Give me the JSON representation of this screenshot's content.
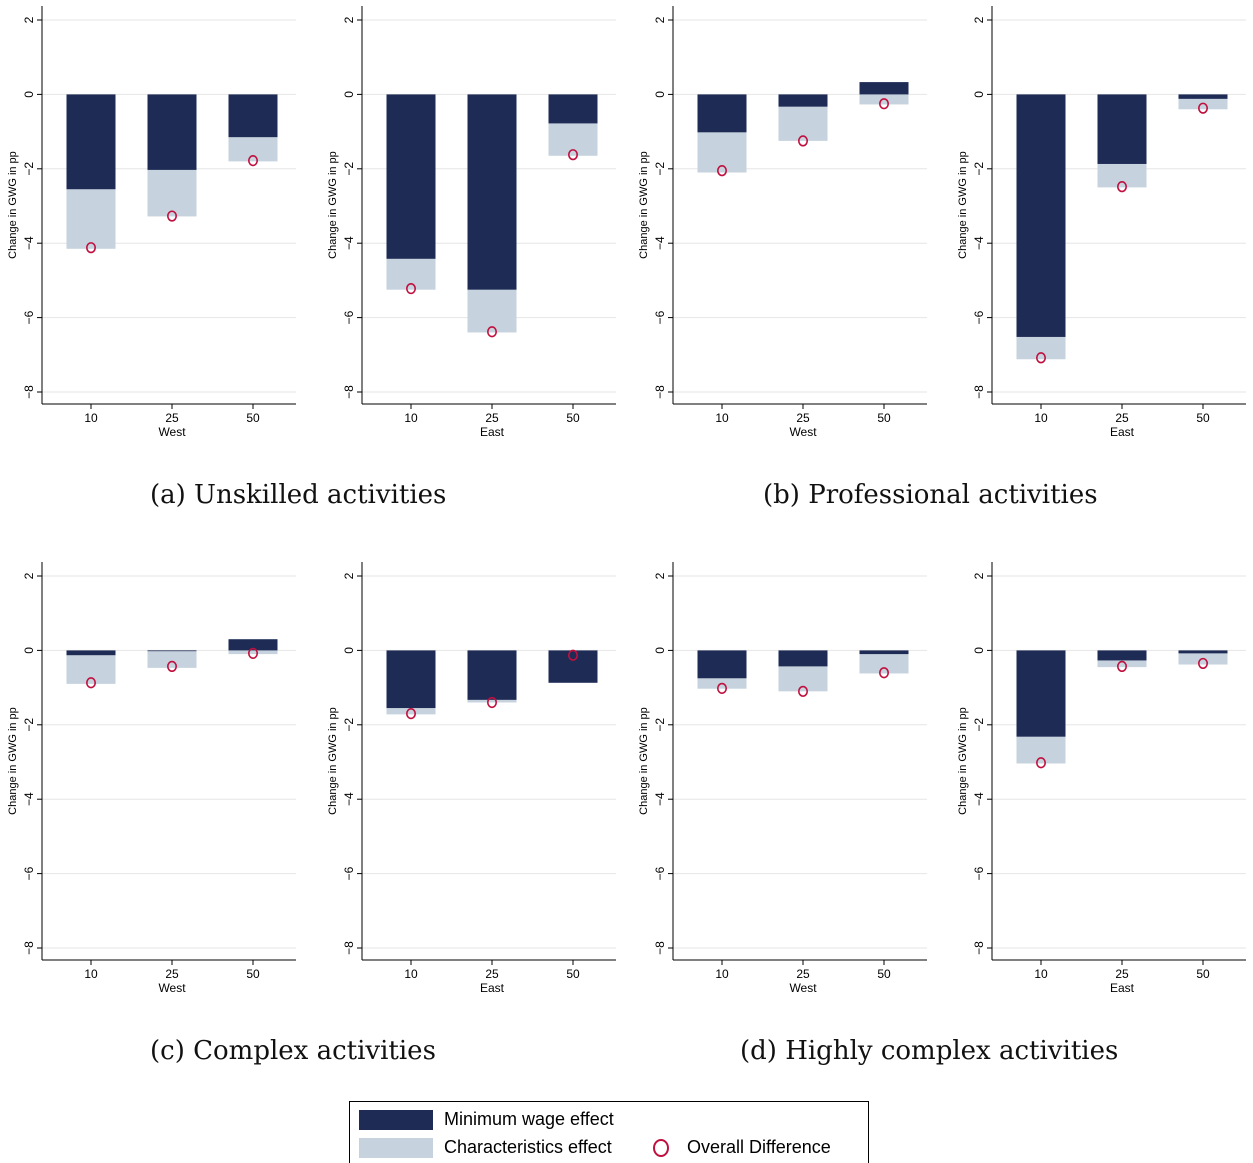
{
  "colors": {
    "minimum_wage": "#1e2b55",
    "characteristics": "#c6d3de",
    "overall": "#c0103f",
    "grid": "#e6e6e6",
    "axis": "#000000"
  },
  "captions": {
    "a": "(a) Unskilled activities",
    "b": "(b) Professional activities",
    "c": "(c) Complex activities",
    "d": "(d) Highly complex activities"
  },
  "legend": {
    "minimum_wage": "Minimum wage effect",
    "characteristics": "Characteristics effect",
    "overall": "Overall Difference"
  },
  "chart_data": [
    {
      "type": "bar",
      "panel": "a",
      "region": "West",
      "xlabel": "West",
      "ylabel": "Change in GWG in pp",
      "categories": [
        "10",
        "25",
        "50"
      ],
      "ylim": [
        -8,
        2
      ],
      "yticks": [
        2,
        0,
        -2,
        -4,
        -6,
        -8
      ],
      "series": [
        {
          "name": "Minimum wage effect",
          "values": [
            -2.55,
            -2.03,
            -1.15
          ]
        },
        {
          "name": "Characteristics effect",
          "values": [
            -1.6,
            -1.25,
            -0.65
          ]
        },
        {
          "name": "Overall Difference",
          "values": [
            -4.12,
            -3.27,
            -1.78
          ]
        }
      ]
    },
    {
      "type": "bar",
      "panel": "a",
      "region": "East",
      "xlabel": "East",
      "ylabel": "Change in GWG in pp",
      "categories": [
        "10",
        "25",
        "50"
      ],
      "ylim": [
        -8,
        2
      ],
      "yticks": [
        2,
        0,
        -2,
        -4,
        -6,
        -8
      ],
      "series": [
        {
          "name": "Minimum wage effect",
          "values": [
            -4.42,
            -5.25,
            -0.78
          ]
        },
        {
          "name": "Characteristics effect",
          "values": [
            -0.83,
            -1.15,
            -0.87
          ]
        },
        {
          "name": "Overall Difference",
          "values": [
            -5.22,
            -6.38,
            -1.62
          ]
        }
      ]
    },
    {
      "type": "bar",
      "panel": "b",
      "region": "West",
      "xlabel": "West",
      "ylabel": "Change in GWG in pp",
      "categories": [
        "10",
        "25",
        "50"
      ],
      "ylim": [
        -8,
        2
      ],
      "yticks": [
        2,
        0,
        -2,
        -4,
        -6,
        -8
      ],
      "series": [
        {
          "name": "Minimum wage effect",
          "values": [
            -1.02,
            -0.33,
            0.33
          ]
        },
        {
          "name": "Characteristics effect",
          "values": [
            -1.08,
            -0.92,
            -0.6
          ]
        },
        {
          "name": "Overall Difference",
          "values": [
            -2.05,
            -1.25,
            -0.25
          ]
        }
      ]
    },
    {
      "type": "bar",
      "panel": "b",
      "region": "East",
      "xlabel": "East",
      "ylabel": "Change in GWG in pp",
      "categories": [
        "10",
        "25",
        "50"
      ],
      "ylim": [
        -8,
        2
      ],
      "yticks": [
        2,
        0,
        -2,
        -4,
        -6,
        -8
      ],
      "series": [
        {
          "name": "Minimum wage effect",
          "values": [
            -6.52,
            -1.87,
            -0.12
          ]
        },
        {
          "name": "Characteristics effect",
          "values": [
            -0.6,
            -0.63,
            -0.28
          ]
        },
        {
          "name": "Overall Difference",
          "values": [
            -7.08,
            -2.48,
            -0.37
          ]
        }
      ]
    },
    {
      "type": "bar",
      "panel": "c",
      "region": "West",
      "xlabel": "West",
      "ylabel": "Change in GWG in pp",
      "categories": [
        "10",
        "25",
        "50"
      ],
      "ylim": [
        -8,
        2
      ],
      "yticks": [
        2,
        0,
        -2,
        -4,
        -6,
        -8
      ],
      "series": [
        {
          "name": "Minimum wage effect",
          "values": [
            -0.13,
            -0.02,
            0.3
          ]
        },
        {
          "name": "Characteristics effect",
          "values": [
            -0.77,
            -0.45,
            -0.4
          ]
        },
        {
          "name": "Overall Difference",
          "values": [
            -0.87,
            -0.43,
            -0.08
          ]
        }
      ]
    },
    {
      "type": "bar",
      "panel": "c",
      "region": "East",
      "xlabel": "East",
      "ylabel": "Change in GWG in pp",
      "categories": [
        "10",
        "25",
        "50"
      ],
      "ylim": [
        -8,
        2
      ],
      "yticks": [
        2,
        0,
        -2,
        -4,
        -6,
        -8
      ],
      "series": [
        {
          "name": "Minimum wage effect",
          "values": [
            -1.55,
            -1.33,
            -0.87
          ]
        },
        {
          "name": "Characteristics effect",
          "values": [
            -0.17,
            -0.07,
            0.72
          ]
        },
        {
          "name": "Overall Difference",
          "values": [
            -1.7,
            -1.4,
            -0.13
          ]
        }
      ]
    },
    {
      "type": "bar",
      "panel": "d",
      "region": "West",
      "xlabel": "West",
      "ylabel": "Change in GWG in pp",
      "categories": [
        "10",
        "25",
        "50"
      ],
      "ylim": [
        -8,
        2
      ],
      "yticks": [
        2,
        0,
        -2,
        -4,
        -6,
        -8
      ],
      "series": [
        {
          "name": "Minimum wage effect",
          "values": [
            -0.75,
            -0.43,
            -0.1
          ]
        },
        {
          "name": "Characteristics effect",
          "values": [
            -0.28,
            -0.67,
            -0.52
          ]
        },
        {
          "name": "Overall Difference",
          "values": [
            -1.02,
            -1.1,
            -0.6
          ]
        }
      ]
    },
    {
      "type": "bar",
      "panel": "d",
      "region": "East",
      "xlabel": "East",
      "ylabel": "Change in GWG in pp",
      "categories": [
        "10",
        "25",
        "50"
      ],
      "ylim": [
        -8,
        2
      ],
      "yticks": [
        2,
        0,
        -2,
        -4,
        -6,
        -8
      ],
      "series": [
        {
          "name": "Minimum wage effect",
          "values": [
            -2.32,
            -0.27,
            -0.08
          ]
        },
        {
          "name": "Characteristics effect",
          "values": [
            -0.72,
            -0.18,
            -0.3
          ]
        },
        {
          "name": "Overall Difference",
          "values": [
            -3.02,
            -0.43,
            -0.35
          ]
        }
      ]
    }
  ]
}
